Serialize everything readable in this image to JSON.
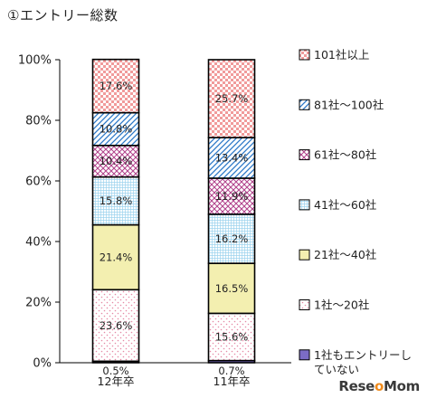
{
  "chart_data": {
    "type": "bar",
    "stacked": true,
    "title": "①エントリー総数",
    "categories": [
      "12年卒",
      "11年卒"
    ],
    "ylim": [
      0,
      100
    ],
    "yticks": [
      "0%",
      "20%",
      "40%",
      "60%",
      "80%",
      "100%"
    ],
    "series": [
      {
        "name": "1社もエントリーしていない",
        "values": [
          0.5,
          0.7
        ],
        "labels": [
          "0.5%",
          "0.7%"
        ],
        "color": "#7b6cc6",
        "pattern": "solid"
      },
      {
        "name": "1社～20社",
        "values": [
          23.6,
          15.6
        ],
        "labels": [
          "23.6%",
          "15.6%"
        ],
        "color": "#e58aa6",
        "pattern": "dots"
      },
      {
        "name": "21社～40社",
        "values": [
          21.4,
          16.5
        ],
        "labels": [
          "21.4%",
          "16.5%"
        ],
        "color": "#f3efb0",
        "pattern": "solid"
      },
      {
        "name": "41社～60社",
        "values": [
          15.8,
          16.2
        ],
        "labels": [
          "15.8%",
          "16.2%"
        ],
        "color": "#9dd3ee",
        "pattern": "grid"
      },
      {
        "name": "61社～80社",
        "values": [
          10.4,
          11.9
        ],
        "labels": [
          "10.4%",
          "11.9%"
        ],
        "color": "#b0408a",
        "pattern": "crosshatch"
      },
      {
        "name": "81社～100社",
        "values": [
          10.8,
          13.4
        ],
        "labels": [
          "10.8%",
          "13.4%"
        ],
        "color": "#2c78c8",
        "pattern": "diagonal"
      },
      {
        "name": "101社以上",
        "values": [
          17.6,
          25.7
        ],
        "labels": [
          "17.6%",
          "25.7%"
        ],
        "color": "#e54848",
        "pattern": "checker"
      }
    ],
    "legend_position": "right",
    "grid": false
  },
  "watermark": {
    "text_pre": "Rese",
    "text_o": "o",
    "text_post": "Mom"
  }
}
